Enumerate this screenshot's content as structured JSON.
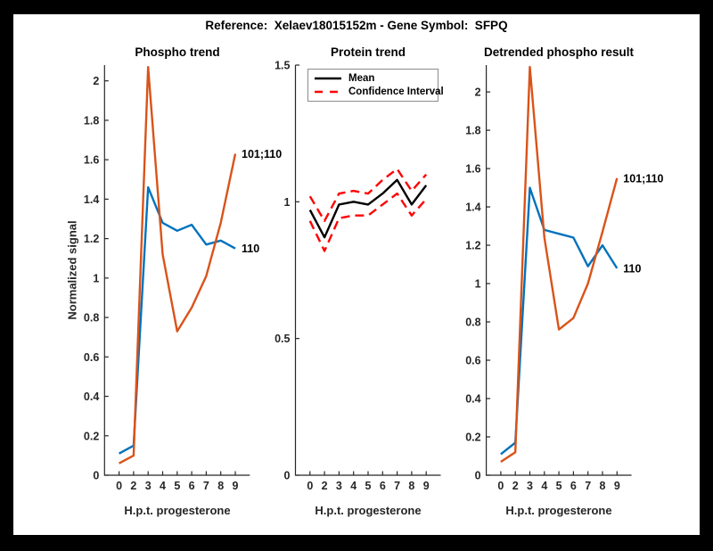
{
  "figure": {
    "title": "Reference:  Xelaev18015152m - Gene Symbol:  SFPQ",
    "background_color": "#000000",
    "canvas_color": "#ffffff"
  },
  "colors": {
    "series_blue": "#0072BD",
    "series_orange": "#D95319",
    "confidence_red": "#ff0000",
    "mean_black": "#000000",
    "axis": "#262626"
  },
  "legend": {
    "position": "northeast-of-middle-plot",
    "entries": [
      {
        "label": "Mean",
        "color": "#000000",
        "style": "solid"
      },
      {
        "label": "Confidence Interval",
        "color": "#ff0000",
        "style": "dashed"
      }
    ]
  },
  "chart_data": [
    {
      "type": "line",
      "title": "Phospho trend",
      "xlabel": "H.p.t. progesterone",
      "ylabel": "Normalized signal",
      "x": [
        0,
        2,
        3,
        4,
        5,
        6,
        7,
        8,
        9
      ],
      "x_tick_labels": [
        "0",
        "2",
        "3",
        "4",
        "5",
        "6",
        "7",
        "8",
        "9"
      ],
      "ylim": [
        0,
        2.08
      ],
      "yticks": [
        0,
        0.2,
        0.4,
        0.6,
        0.8,
        1,
        1.2,
        1.4,
        1.6,
        1.8,
        2
      ],
      "ytick_labels": [
        "0",
        "0.2",
        "0.4",
        "0.6",
        "0.8",
        "1",
        "1.2",
        "1.4",
        "1.6",
        "1.8",
        "2"
      ],
      "grid": false,
      "series": [
        {
          "name": "110",
          "color": "#0072BD",
          "style": "solid",
          "end_label": "110",
          "values": [
            0.11,
            0.15,
            1.46,
            1.28,
            1.24,
            1.27,
            1.17,
            1.19,
            1.15
          ]
        },
        {
          "name": "101;110",
          "color": "#D95319",
          "style": "solid",
          "end_label": "101;110",
          "values": [
            0.06,
            0.1,
            2.07,
            1.12,
            0.73,
            0.85,
            1.01,
            1.28,
            1.63
          ]
        }
      ]
    },
    {
      "type": "line",
      "title": "Protein trend",
      "xlabel": "H.p.t. progesterone",
      "ylabel": "",
      "x": [
        0,
        2,
        3,
        4,
        5,
        6,
        7,
        8,
        9
      ],
      "x_tick_labels": [
        "0",
        "2",
        "3",
        "4",
        "5",
        "6",
        "7",
        "8",
        "9"
      ],
      "ylim": [
        0,
        1.5
      ],
      "yticks": [
        0,
        0.5,
        1,
        1.5
      ],
      "ytick_labels": [
        "0",
        "0.5",
        "1",
        "1.5"
      ],
      "grid": false,
      "legend_position": "northeast",
      "series": [
        {
          "name": "Mean",
          "color": "#000000",
          "style": "solid",
          "end_label": "",
          "values": [
            0.97,
            0.87,
            0.99,
            1.0,
            0.99,
            1.03,
            1.08,
            0.99,
            1.06
          ]
        },
        {
          "name": "Confidence Interval upper",
          "color": "#ff0000",
          "style": "dashed",
          "end_label": "",
          "values": [
            1.02,
            0.93,
            1.03,
            1.04,
            1.03,
            1.08,
            1.12,
            1.04,
            1.1
          ]
        },
        {
          "name": "Confidence Interval lower",
          "color": "#ff0000",
          "style": "dashed",
          "end_label": "",
          "values": [
            0.93,
            0.82,
            0.94,
            0.95,
            0.95,
            0.99,
            1.03,
            0.95,
            1.01
          ]
        }
      ]
    },
    {
      "type": "line",
      "title": "Detrended phospho result",
      "xlabel": "H.p.t. progesterone",
      "ylabel": "",
      "x": [
        0,
        2,
        3,
        4,
        5,
        6,
        7,
        8,
        9
      ],
      "x_tick_labels": [
        "0",
        "2",
        "3",
        "4",
        "5",
        "6",
        "7",
        "8",
        "9"
      ],
      "ylim": [
        0,
        2.14
      ],
      "yticks": [
        0,
        0.2,
        0.4,
        0.6,
        0.8,
        1,
        1.2,
        1.4,
        1.6,
        1.8,
        2
      ],
      "ytick_labels": [
        "0",
        "0.2",
        "0.4",
        "0.6",
        "0.8",
        "1",
        "1.2",
        "1.4",
        "1.6",
        "1.8",
        "2"
      ],
      "grid": false,
      "series": [
        {
          "name": "110",
          "color": "#0072BD",
          "style": "solid",
          "end_label": "110",
          "values": [
            0.11,
            0.17,
            1.5,
            1.28,
            1.26,
            1.24,
            1.09,
            1.2,
            1.08
          ]
        },
        {
          "name": "101;110",
          "color": "#D95319",
          "style": "solid",
          "end_label": "101;110",
          "values": [
            0.07,
            0.12,
            2.13,
            1.24,
            0.76,
            0.82,
            1.0,
            1.27,
            1.55
          ]
        }
      ]
    }
  ]
}
